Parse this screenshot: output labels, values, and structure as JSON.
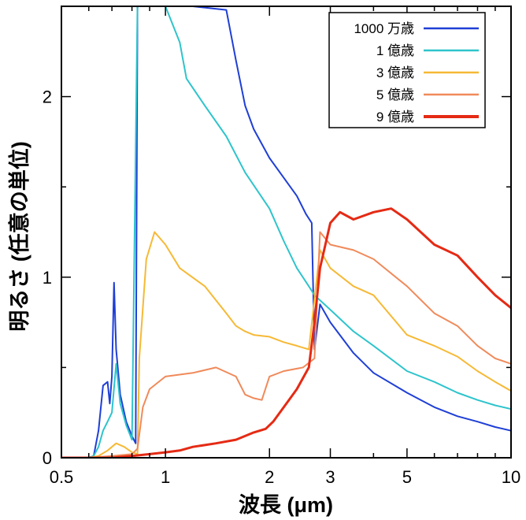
{
  "chart_data": {
    "type": "line",
    "title": "",
    "xlabel": "波長 (μm)",
    "ylabel": "明るさ (任意の単位)",
    "xscale": "log",
    "xlim": [
      0.5,
      10
    ],
    "ylim": [
      0,
      2.5
    ],
    "x_ticks": [
      0.5,
      1,
      2,
      3,
      5,
      10
    ],
    "x_tick_labels": [
      "0.5",
      "1",
      "2",
      "3",
      "5",
      "10"
    ],
    "y_ticks": [
      0,
      1,
      2
    ],
    "y_tick_labels": [
      "0",
      "1",
      "2"
    ],
    "grid": false,
    "legend_position": "top-right",
    "series": [
      {
        "name": "1000 万歳",
        "color": "#1f3fd6",
        "points": [
          [
            0.5,
            0
          ],
          [
            0.6,
            0
          ],
          [
            0.62,
            0.01
          ],
          [
            0.64,
            0.15
          ],
          [
            0.66,
            0.4
          ],
          [
            0.68,
            0.42
          ],
          [
            0.69,
            0.3
          ],
          [
            0.7,
            0.45
          ],
          [
            0.71,
            0.97
          ],
          [
            0.72,
            0.6
          ],
          [
            0.74,
            0.35
          ],
          [
            0.77,
            0.2
          ],
          [
            0.8,
            0.12
          ],
          [
            0.82,
            0.08
          ],
          [
            0.83,
            2.5
          ],
          [
            1.2,
            2.5
          ],
          [
            1.5,
            2.48
          ],
          [
            1.6,
            2.2
          ],
          [
            1.7,
            1.95
          ],
          [
            1.8,
            1.82
          ],
          [
            2.0,
            1.66
          ],
          [
            2.2,
            1.55
          ],
          [
            2.4,
            1.45
          ],
          [
            2.55,
            1.35
          ],
          [
            2.65,
            1.3
          ],
          [
            2.7,
            0.6
          ],
          [
            2.8,
            0.85
          ],
          [
            3.0,
            0.75
          ],
          [
            3.5,
            0.58
          ],
          [
            4.0,
            0.47
          ],
          [
            5.0,
            0.36
          ],
          [
            6.0,
            0.28
          ],
          [
            7.0,
            0.23
          ],
          [
            8.0,
            0.2
          ],
          [
            9.0,
            0.17
          ],
          [
            10,
            0.15
          ]
        ]
      },
      {
        "name": "1 億歳",
        "color": "#2ec4cc",
        "points": [
          [
            0.5,
            0
          ],
          [
            0.6,
            0
          ],
          [
            0.62,
            0.01
          ],
          [
            0.64,
            0.06
          ],
          [
            0.66,
            0.15
          ],
          [
            0.68,
            0.2
          ],
          [
            0.7,
            0.25
          ],
          [
            0.72,
            0.52
          ],
          [
            0.74,
            0.3
          ],
          [
            0.77,
            0.18
          ],
          [
            0.8,
            0.1
          ],
          [
            0.83,
            2.5
          ],
          [
            1.0,
            2.5
          ],
          [
            1.1,
            2.3
          ],
          [
            1.15,
            2.1
          ],
          [
            1.3,
            1.95
          ],
          [
            1.5,
            1.78
          ],
          [
            1.7,
            1.58
          ],
          [
            2.0,
            1.38
          ],
          [
            2.2,
            1.2
          ],
          [
            2.4,
            1.05
          ],
          [
            2.6,
            0.95
          ],
          [
            2.7,
            0.9
          ],
          [
            3.0,
            0.82
          ],
          [
            3.5,
            0.7
          ],
          [
            4.0,
            0.62
          ],
          [
            5.0,
            0.48
          ],
          [
            6.0,
            0.42
          ],
          [
            7.0,
            0.36
          ],
          [
            8.0,
            0.32
          ],
          [
            9.0,
            0.29
          ],
          [
            10,
            0.27
          ]
        ]
      },
      {
        "name": "3 億歳",
        "color": "#f6b935",
        "points": [
          [
            0.5,
            0
          ],
          [
            0.6,
            0
          ],
          [
            0.64,
            0.01
          ],
          [
            0.68,
            0.04
          ],
          [
            0.72,
            0.08
          ],
          [
            0.76,
            0.06
          ],
          [
            0.8,
            0.03
          ],
          [
            0.83,
            0.02
          ],
          [
            0.84,
            0.55
          ],
          [
            0.88,
            1.1
          ],
          [
            0.93,
            1.25
          ],
          [
            1.0,
            1.18
          ],
          [
            1.1,
            1.05
          ],
          [
            1.3,
            0.95
          ],
          [
            1.5,
            0.8
          ],
          [
            1.6,
            0.73
          ],
          [
            1.7,
            0.7
          ],
          [
            1.8,
            0.68
          ],
          [
            2.0,
            0.67
          ],
          [
            2.2,
            0.64
          ],
          [
            2.4,
            0.62
          ],
          [
            2.6,
            0.6
          ],
          [
            2.8,
            1.15
          ],
          [
            3.0,
            1.05
          ],
          [
            3.5,
            0.95
          ],
          [
            4.0,
            0.9
          ],
          [
            5.0,
            0.68
          ],
          [
            6.0,
            0.62
          ],
          [
            7.0,
            0.56
          ],
          [
            8.0,
            0.48
          ],
          [
            9.0,
            0.42
          ],
          [
            10,
            0.37
          ]
        ]
      },
      {
        "name": "5 億歳",
        "color": "#f08a5a",
        "points": [
          [
            0.5,
            0
          ],
          [
            0.6,
            0
          ],
          [
            0.7,
            0.01
          ],
          [
            0.8,
            0.02
          ],
          [
            0.83,
            0.05
          ],
          [
            0.86,
            0.28
          ],
          [
            0.9,
            0.38
          ],
          [
            1.0,
            0.45
          ],
          [
            1.2,
            0.47
          ],
          [
            1.4,
            0.5
          ],
          [
            1.6,
            0.45
          ],
          [
            1.7,
            0.35
          ],
          [
            1.8,
            0.33
          ],
          [
            1.9,
            0.32
          ],
          [
            2.0,
            0.45
          ],
          [
            2.2,
            0.48
          ],
          [
            2.5,
            0.5
          ],
          [
            2.7,
            0.55
          ],
          [
            2.8,
            1.25
          ],
          [
            3.0,
            1.18
          ],
          [
            3.5,
            1.15
          ],
          [
            4.0,
            1.1
          ],
          [
            5.0,
            0.95
          ],
          [
            6.0,
            0.8
          ],
          [
            7.0,
            0.73
          ],
          [
            8.0,
            0.62
          ],
          [
            9.0,
            0.55
          ],
          [
            10,
            0.52
          ]
        ]
      },
      {
        "name": "9 億歳",
        "color": "#e52a14",
        "points": [
          [
            0.5,
            0
          ],
          [
            0.7,
            0
          ],
          [
            0.8,
            0.01
          ],
          [
            0.9,
            0.02
          ],
          [
            1.0,
            0.03
          ],
          [
            1.1,
            0.04
          ],
          [
            1.2,
            0.06
          ],
          [
            1.4,
            0.08
          ],
          [
            1.6,
            0.1
          ],
          [
            1.8,
            0.14
          ],
          [
            1.95,
            0.16
          ],
          [
            2.05,
            0.2
          ],
          [
            2.2,
            0.28
          ],
          [
            2.4,
            0.38
          ],
          [
            2.6,
            0.5
          ],
          [
            2.7,
            0.75
          ],
          [
            2.8,
            1.05
          ],
          [
            3.0,
            1.3
          ],
          [
            3.2,
            1.36
          ],
          [
            3.5,
            1.32
          ],
          [
            4.0,
            1.36
          ],
          [
            4.5,
            1.38
          ],
          [
            5.0,
            1.32
          ],
          [
            6.0,
            1.18
          ],
          [
            7.0,
            1.12
          ],
          [
            8.0,
            1.0
          ],
          [
            9.0,
            0.9
          ],
          [
            10,
            0.83
          ]
        ]
      }
    ]
  }
}
